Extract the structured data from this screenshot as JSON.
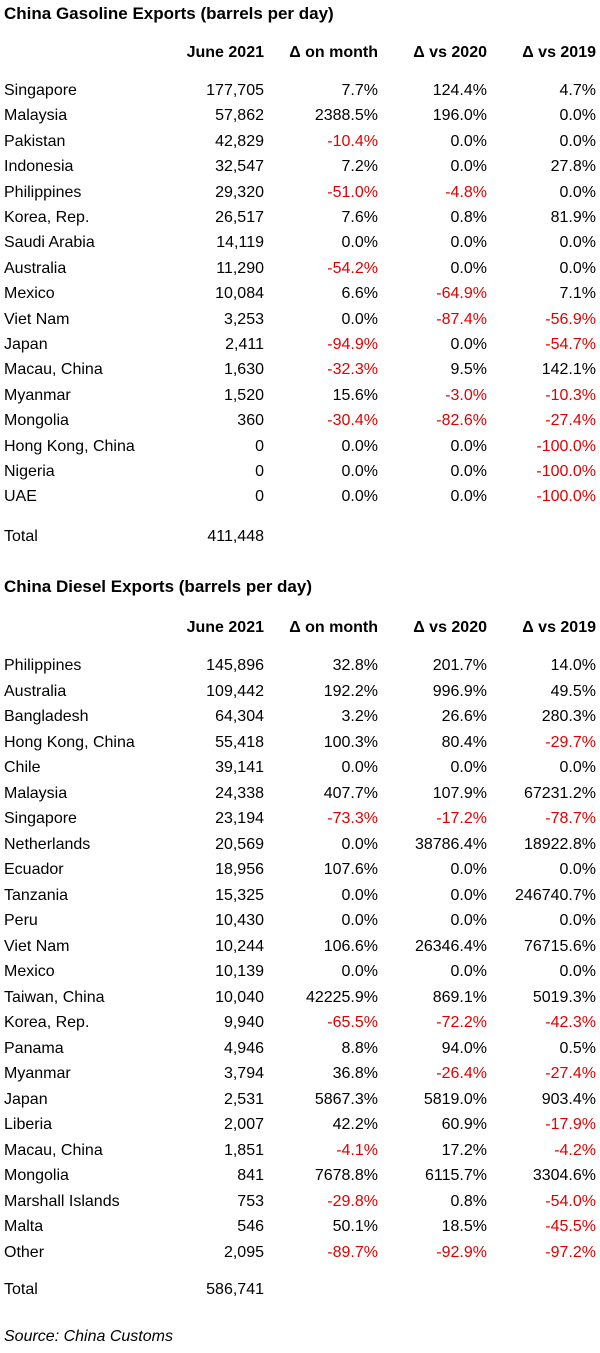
{
  "gasoline": {
    "title": "China Gasoline Exports (barrels per day)",
    "headers": [
      "June 2021",
      "Δ on month",
      "Δ vs 2020",
      "Δ vs 2019"
    ],
    "rows": [
      [
        "Singapore",
        "177,705",
        "7.7%",
        "124.4%",
        "4.7%"
      ],
      [
        "Malaysia",
        "57,862",
        "2388.5%",
        "196.0%",
        "0.0%"
      ],
      [
        "Pakistan",
        "42,829",
        "-10.4%",
        "0.0%",
        "0.0%"
      ],
      [
        "Indonesia",
        "32,547",
        "7.2%",
        "0.0%",
        "27.8%"
      ],
      [
        "Philippines",
        "29,320",
        "-51.0%",
        "-4.8%",
        "0.0%"
      ],
      [
        "Korea, Rep.",
        "26,517",
        "7.6%",
        "0.8%",
        "81.9%"
      ],
      [
        "Saudi Arabia",
        "14,119",
        "0.0%",
        "0.0%",
        "0.0%"
      ],
      [
        "Australia",
        "11,290",
        "-54.2%",
        "0.0%",
        "0.0%"
      ],
      [
        "Mexico",
        "10,084",
        "6.6%",
        "-64.9%",
        "7.1%"
      ],
      [
        "Viet Nam",
        "3,253",
        "0.0%",
        "-87.4%",
        "-56.9%"
      ],
      [
        "Japan",
        "2,411",
        "-94.9%",
        "0.0%",
        "-54.7%"
      ],
      [
        "Macau, China",
        "1,630",
        "-32.3%",
        "9.5%",
        "142.1%"
      ],
      [
        "Myanmar",
        "1,520",
        "15.6%",
        "-3.0%",
        "-10.3%"
      ],
      [
        "Mongolia",
        "360",
        "-30.4%",
        "-82.6%",
        "-27.4%"
      ],
      [
        "Hong Kong, China",
        "0",
        "0.0%",
        "0.0%",
        "-100.0%"
      ],
      [
        "Nigeria",
        "0",
        "0.0%",
        "0.0%",
        "-100.0%"
      ],
      [
        "UAE",
        "0",
        "0.0%",
        "0.0%",
        "-100.0%"
      ]
    ],
    "total_label": "Total",
    "total_value": "411,448"
  },
  "diesel": {
    "title": "China Diesel Exports (barrels per day)",
    "headers": [
      "June 2021",
      "Δ on month",
      "Δ vs 2020",
      "Δ vs 2019"
    ],
    "rows": [
      [
        "Philippines",
        "145,896",
        "32.8%",
        "201.7%",
        "14.0%"
      ],
      [
        "Australia",
        "109,442",
        "192.2%",
        "996.9%",
        "49.5%"
      ],
      [
        "Bangladesh",
        "64,304",
        "3.2%",
        "26.6%",
        "280.3%"
      ],
      [
        "Hong Kong, China",
        "55,418",
        "100.3%",
        "80.4%",
        "-29.7%"
      ],
      [
        "Chile",
        "39,141",
        "0.0%",
        "0.0%",
        "0.0%"
      ],
      [
        "Malaysia",
        "24,338",
        "407.7%",
        "107.9%",
        "67231.2%"
      ],
      [
        "Singapore",
        "23,194",
        "-73.3%",
        "-17.2%",
        "-78.7%"
      ],
      [
        "Netherlands",
        "20,569",
        "0.0%",
        "38786.4%",
        "18922.8%"
      ],
      [
        "Ecuador",
        "18,956",
        "107.6%",
        "0.0%",
        "0.0%"
      ],
      [
        "Tanzania",
        "15,325",
        "0.0%",
        "0.0%",
        "246740.7%"
      ],
      [
        "Peru",
        "10,430",
        "0.0%",
        "0.0%",
        "0.0%"
      ],
      [
        "Viet Nam",
        "10,244",
        "106.6%",
        "26346.4%",
        "76715.6%"
      ],
      [
        "Mexico",
        "10,139",
        "0.0%",
        "0.0%",
        "0.0%"
      ],
      [
        "Taiwan, China",
        "10,040",
        "42225.9%",
        "869.1%",
        "5019.3%"
      ],
      [
        "Korea, Rep.",
        "9,940",
        "-65.5%",
        "-72.2%",
        "-42.3%"
      ],
      [
        "Panama",
        "4,946",
        "8.8%",
        "94.0%",
        "0.5%"
      ],
      [
        "Myanmar",
        "3,794",
        "36.8%",
        "-26.4%",
        "-27.4%"
      ],
      [
        "Japan",
        "2,531",
        "5867.3%",
        "5819.0%",
        "903.4%"
      ],
      [
        "Liberia",
        "2,007",
        "42.2%",
        "60.9%",
        "-17.9%"
      ],
      [
        "Macau, China",
        "1,851",
        "-4.1%",
        "17.2%",
        "-4.2%"
      ],
      [
        "Mongolia",
        "841",
        "7678.8%",
        "6115.7%",
        "3304.6%"
      ],
      [
        "Marshall Islands",
        "753",
        "-29.8%",
        "0.8%",
        "-54.0%"
      ],
      [
        "Malta",
        "546",
        "50.1%",
        "18.5%",
        "-45.5%"
      ],
      [
        "Other",
        "2,095",
        "-89.7%",
        "-92.9%",
        "-97.2%"
      ]
    ],
    "total_label": "Total",
    "total_value": "586,741"
  },
  "source": "Source: China Customs",
  "colors": {
    "negative": "#e00000",
    "text": "#000000"
  }
}
